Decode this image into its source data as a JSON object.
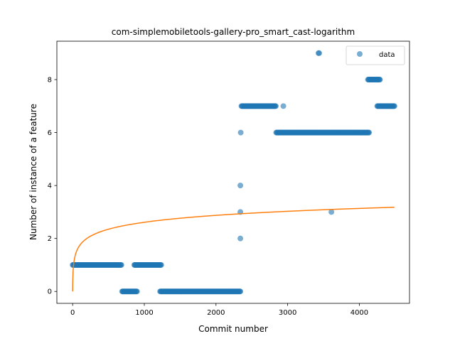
{
  "chart_data": {
    "type": "scatter",
    "title": "com-simplemobiletools-gallery-pro_smart_cast-logarithm",
    "xlabel": "Commit number",
    "ylabel": "Number of instance of a feature",
    "xlim": [
      -220,
      4700
    ],
    "ylim": [
      -0.45,
      9.45
    ],
    "xticks": [
      0,
      1000,
      2000,
      3000,
      4000
    ],
    "yticks": [
      0,
      2,
      4,
      6,
      8
    ],
    "grid": false,
    "legend": {
      "placement": "top-right",
      "entries": [
        "data"
      ]
    },
    "colors": {
      "data": "#1f77b4",
      "fit": "#ff7f0e"
    },
    "series": [
      {
        "name": "data",
        "kind": "scatter",
        "segments": [
          {
            "x_start": 0,
            "x_end": 680,
            "y": 1
          },
          {
            "x_start": 690,
            "x_end": 900,
            "y": 0
          },
          {
            "x_start": 860,
            "x_end": 1240,
            "y": 1
          },
          {
            "x_start": 1220,
            "x_end": 2340,
            "y": 0
          },
          {
            "x_start": 2355,
            "x_end": 2840,
            "y": 7
          },
          {
            "x_start": 2840,
            "x_end": 4140,
            "y": 6
          },
          {
            "x_start": 4120,
            "x_end": 4290,
            "y": 8
          },
          {
            "x_start": 4250,
            "x_end": 4490,
            "y": 7
          }
        ],
        "points": [
          {
            "x": 2340,
            "y": 2
          },
          {
            "x": 2340,
            "y": 3
          },
          {
            "x": 2340,
            "y": 4
          },
          {
            "x": 2345,
            "y": 6
          },
          {
            "x": 2940,
            "y": 7
          },
          {
            "x": 3430,
            "y": 9
          },
          {
            "x": 3440,
            "y": 9
          },
          {
            "x": 3610,
            "y": 3
          }
        ]
      },
      {
        "kind": "line",
        "fit": "logarithmic",
        "a": 0.378,
        "b": 0.819,
        "x_range": [
          0,
          4490
        ]
      }
    ]
  }
}
